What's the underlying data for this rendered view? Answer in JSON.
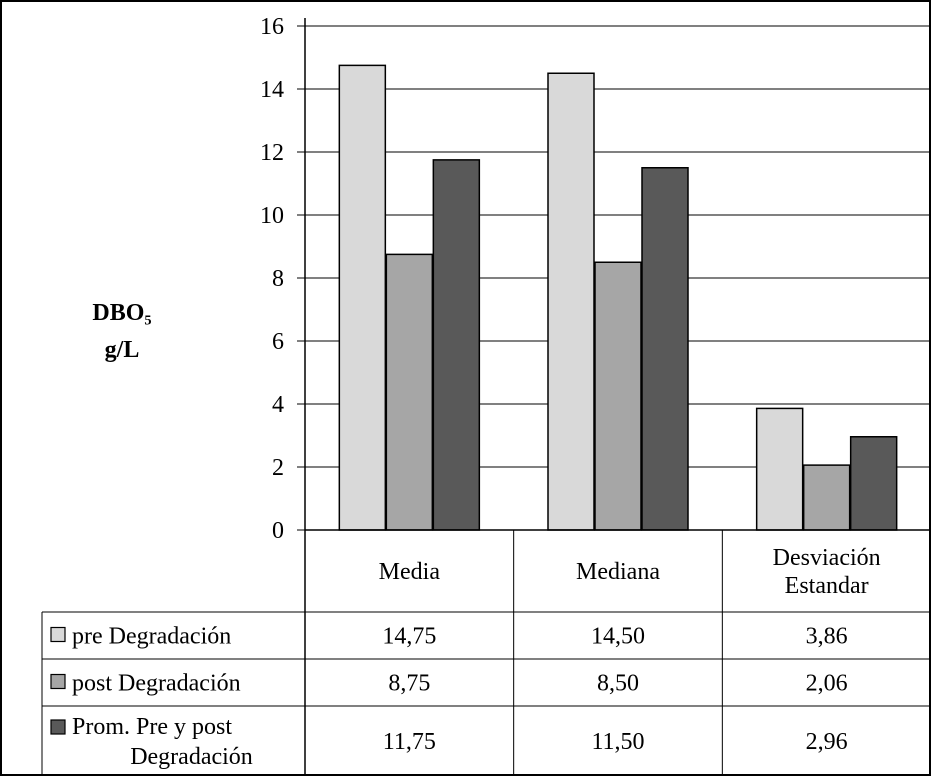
{
  "chart_data": {
    "type": "bar",
    "ylabel_line1": "DBO₅",
    "ylabel_line2": "g/L",
    "ylim": [
      0,
      16
    ],
    "yticks": [
      0,
      2,
      4,
      6,
      8,
      10,
      12,
      14,
      16
    ],
    "grid": true,
    "legend": "data table below chart",
    "categories": [
      "Media",
      "Mediana",
      "Desviación Estandar"
    ],
    "category_lines": [
      [
        "Media"
      ],
      [
        "Mediana"
      ],
      [
        "Desviación",
        "Estandar"
      ]
    ],
    "series": [
      {
        "name": "pre Degradación",
        "name_lines": [
          "pre Degradación"
        ],
        "color": "#d9d9d9",
        "values": [
          14.75,
          14.5,
          3.86
        ],
        "value_labels": [
          "14,75",
          "14,50",
          "3,86"
        ]
      },
      {
        "name": "post Degradación",
        "name_lines": [
          "post Degradación"
        ],
        "color": "#a6a6a6",
        "values": [
          8.75,
          8.5,
          2.06
        ],
        "value_labels": [
          "8,75",
          "8,50",
          "2,06"
        ]
      },
      {
        "name": "Prom. Pre y post Degradación",
        "name_lines": [
          "Prom. Pre y post",
          "Degradación"
        ],
        "color": "#595959",
        "values": [
          11.75,
          11.5,
          2.96
        ],
        "value_labels": [
          "11,75",
          "11,50",
          "2,96"
        ]
      }
    ]
  }
}
